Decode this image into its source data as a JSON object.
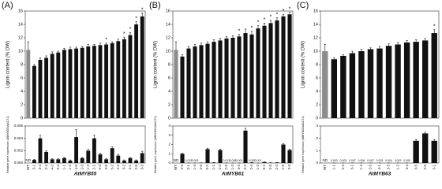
{
  "chart_data": [
    {
      "type": "bar",
      "title": "(A)",
      "ylabel": "Lignin content (% DW)",
      "ylim": [
        0,
        16
      ],
      "yticks": [
        0,
        2,
        4,
        6,
        8,
        10,
        12,
        14,
        16
      ],
      "values": [
        10.2,
        7.8,
        8.7,
        9.0,
        9.6,
        9.8,
        10.2,
        10.3,
        10.4,
        10.5,
        10.7,
        10.8,
        10.9,
        11.0,
        11.2,
        11.5,
        11.8,
        12.4,
        14.0,
        15.2
      ],
      "errors": [
        1.2,
        0.2,
        0.3,
        0.3,
        0.3,
        0.2,
        0.2,
        0.3,
        0.2,
        0.2,
        0.3,
        0.2,
        0.3,
        0.2,
        0.2,
        0.3,
        0.3,
        0.4,
        0.4,
        0.5
      ],
      "annotations": [
        null,
        null,
        null,
        null,
        null,
        null,
        null,
        null,
        null,
        null,
        null,
        null,
        null,
        "*",
        null,
        null,
        "*",
        "*",
        "*",
        "*"
      ],
      "color": "#111111",
      "first_color": "#8c8c8c"
    },
    {
      "type": "bar",
      "ylabel": "Relative gene expression (AtMYB55/AtACT2)",
      "xlabel": "AtMYB55",
      "ylim": [
        0,
        0.006
      ],
      "yticks": [
        {
          "value": 0,
          "label": "0.000"
        },
        {
          "value": 0.002,
          "label": "0.002"
        },
        {
          "value": 0.004,
          "label": "0.004"
        },
        {
          "value": 0.006,
          "label": "0.006"
        }
      ],
      "categories": [
        "WT",
        "3-1",
        "3-4",
        "2-4",
        "4-2",
        "5-4",
        "1-1",
        "1-2",
        "4-5",
        "2-3",
        "1-3",
        "2-1",
        "5-3",
        "3-5",
        "5-2",
        "2-2",
        "3-2",
        "4-1",
        "2-5",
        "3-3"
      ],
      "values": [
        null,
        0.0005,
        0.004,
        0.0018,
        0.0006,
        0.0006,
        0.0008,
        0.0004,
        0.0042,
        0.0008,
        0.002,
        0.004,
        0.0014,
        0.0006,
        0.0024,
        0.0012,
        0.0004,
        0.0008,
        0.0004,
        0.0016
      ],
      "errors": [
        null,
        0.0001,
        0.0005,
        0.0002,
        0.0001,
        0.0001,
        0.0001,
        0.0001,
        0.0012,
        0.0001,
        0.0002,
        0.0005,
        0.0002,
        0.0001,
        0.0002,
        0.0002,
        0.0001,
        0.0001,
        0.0001,
        0.0003
      ],
      "value_labels": [
        "ND",
        null,
        null,
        null,
        null,
        null,
        null,
        null,
        null,
        null,
        null,
        null,
        null,
        null,
        null,
        null,
        null,
        null,
        null,
        null
      ],
      "color": "#111111"
    },
    {
      "type": "bar",
      "title": "(B)",
      "ylabel": "Lignin content (% DW)",
      "ylim": [
        0,
        16
      ],
      "yticks": [
        0,
        2,
        4,
        6,
        8,
        10,
        12,
        14,
        16
      ],
      "values": [
        10.2,
        9.2,
        10.4,
        10.7,
        10.9,
        11.1,
        11.4,
        11.6,
        11.9,
        12.0,
        12.2,
        12.7,
        12.5,
        13.4,
        13.8,
        14.2,
        14.6,
        15.2,
        15.5
      ],
      "errors": [
        1.2,
        0.3,
        0.3,
        0.3,
        0.3,
        0.3,
        0.3,
        0.3,
        0.3,
        0.3,
        0.3,
        0.6,
        0.5,
        0.4,
        0.4,
        0.4,
        0.4,
        0.3,
        0.3
      ],
      "annotations": [
        null,
        null,
        null,
        null,
        null,
        null,
        null,
        null,
        null,
        null,
        "*",
        null,
        "*",
        "*",
        "*",
        "*",
        "*",
        "*",
        "*"
      ],
      "color": "#111111",
      "first_color": "#8c8c8c"
    },
    {
      "type": "bar",
      "ylabel": "Relative gene expression (AtMYB61/AtACT2)",
      "xlabel": "AtMYB61",
      "ylim": [
        0,
        4
      ],
      "yticks": [
        0,
        1,
        2,
        3,
        4
      ],
      "categories": [
        "WT",
        "2-3",
        "3-1",
        "1-4",
        "4-5",
        "5-2",
        "1-1",
        "4-2",
        "2-5",
        "1-3",
        "4-3",
        "3-2",
        "2-4",
        "1-2",
        "5-1",
        "3-5",
        "2-2",
        "1-5",
        "3-3"
      ],
      "values": [
        null,
        1.0,
        0.013,
        0.009,
        0.02,
        1.5,
        0.05,
        1.4,
        0.013,
        0.008,
        0.009,
        3.5,
        0.052,
        0.001,
        0.1,
        0.03,
        0.05,
        2.0,
        1.4
      ],
      "errors": [
        null,
        0.05,
        0.002,
        0.002,
        0.005,
        0.1,
        0.01,
        0.1,
        0.002,
        0.002,
        0.002,
        0.25,
        0.01,
        0.001,
        0.02,
        0.01,
        0.01,
        0.08,
        0.1
      ],
      "value_labels": [
        "ND",
        null,
        "0.013",
        "0.009",
        null,
        null,
        null,
        null,
        "0.013",
        "0.008",
        "0.009",
        null,
        "0.052",
        "0.001",
        null,
        null,
        null,
        null,
        null
      ],
      "color": "#111111"
    },
    {
      "type": "bar",
      "title": "(C)",
      "ylabel": "Lignin content (% DW)",
      "ylim": [
        0,
        16
      ],
      "yticks": [
        0,
        2,
        4,
        6,
        8,
        10,
        12,
        14,
        16
      ],
      "values": [
        10.0,
        8.8,
        9.3,
        9.7,
        10.0,
        10.3,
        10.4,
        10.8,
        11.0,
        11.3,
        11.4,
        11.6,
        12.7
      ],
      "errors": [
        1.0,
        0.2,
        0.2,
        0.3,
        0.3,
        0.2,
        0.3,
        0.3,
        0.3,
        0.3,
        0.3,
        0.3,
        0.5
      ],
      "annotations": [
        null,
        null,
        null,
        null,
        null,
        null,
        null,
        null,
        null,
        null,
        null,
        null,
        "*"
      ],
      "color": "#111111",
      "first_color": "#8c8c8c"
    },
    {
      "type": "bar",
      "ylabel": "Relative gene expression (AtMYB63/AtACT2)",
      "xlabel": "AtMYB63",
      "ylim": [
        0,
        3
      ],
      "yticks": [
        0,
        1,
        2,
        3
      ],
      "categories": [
        "WT",
        "1-1",
        "2-2",
        "3-1",
        "1-4",
        "2-5",
        "4-1",
        "3-3",
        "1-2",
        "4-4",
        "3-5",
        "2-5",
        "3-1"
      ],
      "values": [
        null,
        0.003,
        0.003,
        0.007,
        0.006,
        0.007,
        0.003,
        0.004,
        0.003,
        0.005,
        1.8,
        2.4,
        1.8
      ],
      "errors": [
        null,
        0.001,
        0.001,
        0.001,
        0.001,
        0.001,
        0.001,
        0.001,
        0.001,
        0.001,
        0.1,
        0.1,
        0.1
      ],
      "value_labels": [
        "ND",
        "0.003",
        "0.003",
        "0.007",
        "0.006",
        "0.007",
        "0.003",
        "0.004",
        "0.003",
        "0.005",
        null,
        null,
        null
      ],
      "color": "#111111"
    }
  ]
}
